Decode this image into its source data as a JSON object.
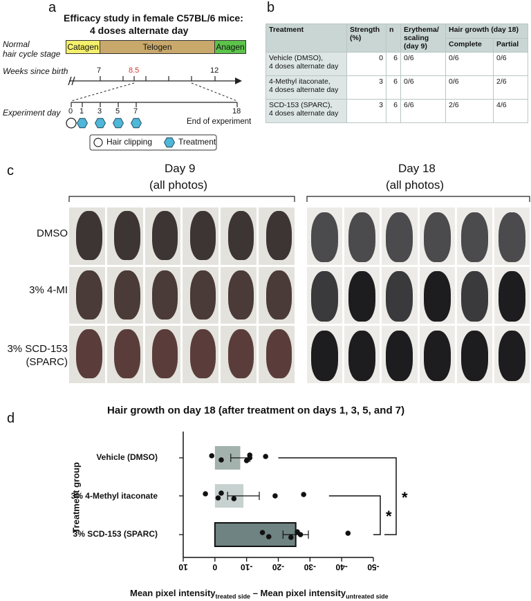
{
  "panel_a": {
    "label": "a",
    "title": "Efficacy study in female C57BL/6 mice:",
    "subtitle": "4 doses alternate day",
    "hair_cycle_label_1": "Normal",
    "hair_cycle_label_2": "hair cycle stage",
    "stages": [
      "Catagen",
      "Telogen",
      "Anagen"
    ],
    "stage_colors": [
      "#f5f06b",
      "#c8a86b",
      "#5cc44a"
    ],
    "weeks_label": "Weeks since birth",
    "week_ticks": [
      "7",
      "8.5",
      "12"
    ],
    "highlight_color": "#d2332f",
    "experiment_label": "Experiment day",
    "day_ticks": [
      "0",
      "1",
      "3",
      "5",
      "7",
      "18"
    ],
    "end_label": "End of experiment",
    "legend": [
      "Hair clipping",
      "Treatment"
    ],
    "icons": [
      "circle-icon",
      "hexagon-icon"
    ]
  },
  "panel_b": {
    "label": "b",
    "headers": {
      "treatment": "Treatment",
      "strength": "Strength (%)",
      "n": "n",
      "erythema": "Erythema/ scaling (day 9)",
      "hair_growth": "Hair growth (day 18)",
      "complete": "Complete",
      "partial": "Partial"
    },
    "rows": [
      {
        "treatment": "Vehicle (DMSO),",
        "treatment2": "4 doses alternate day",
        "strength": "0",
        "n": "6",
        "erythema": "0/6",
        "complete": "0/6",
        "partial": "0/6"
      },
      {
        "treatment": "4-Methyl itaconate,",
        "treatment2": "4 doses alternate day",
        "strength": "3",
        "n": "6",
        "erythema": "0/6",
        "complete": "0/6",
        "partial": "2/6"
      },
      {
        "treatment": "SCD-153 (SPARC),",
        "treatment2": "4 doses alternate day",
        "strength": "3",
        "n": "6",
        "erythema": "6/6",
        "complete": "2/6",
        "partial": "4/6"
      }
    ]
  },
  "panel_c": {
    "label": "c",
    "day9_title": "Day 9",
    "day9_sub": "(all photos)",
    "day18_title": "Day 18",
    "day18_sub": "(all photos)",
    "row_labels": [
      "DMSO",
      "3% 4-MI",
      "3% SCD-153",
      "(SPARC)"
    ]
  },
  "panel_d": {
    "label": "d",
    "sig_marker": "*"
  },
  "chart_data": {
    "type": "bar",
    "orientation": "horizontal",
    "title": "Hair growth on day 18 (after treatment on days 1, 3, 5, and 7)",
    "ylabel": "Treatment group",
    "xlabel_main": "Mean pixel intensity",
    "xlabel_sub1": "treated side",
    "xlabel_mid": " – Mean pixel intensity",
    "xlabel_sub2": "untreated side",
    "categories": [
      "Vehicle (DMSO)",
      "3% 4-Methyl itaconate",
      "3% SCD-153 (SPARC)"
    ],
    "values": [
      -8,
      -9,
      -25.5
    ],
    "errors": [
      3,
      5,
      4
    ],
    "bar_colors": [
      "#a3b2ac",
      "#c7d1cf",
      "#6e8382"
    ],
    "points": [
      [
        1,
        -2,
        -11,
        -10,
        -11,
        -16
      ],
      [
        3,
        -1,
        -2,
        -6,
        -19,
        -28
      ],
      [
        -15,
        -17,
        -26,
        -24,
        -27,
        -42
      ]
    ],
    "xlim": [
      10,
      -50
    ],
    "xticks": [
      10,
      0,
      -10,
      -20,
      -30,
      -40,
      -50
    ],
    "tick_labels": [
      "10",
      "0",
      "-10",
      "-20",
      "-30",
      "-40",
      "-50"
    ],
    "significance": [
      "*",
      "*"
    ]
  }
}
